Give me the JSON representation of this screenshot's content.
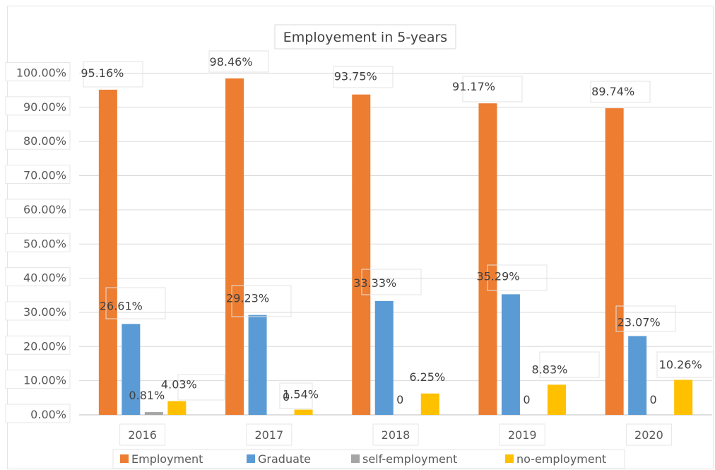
{
  "chart_data": {
    "type": "bar",
    "title": "Employement in 5-years",
    "categories": [
      "2016",
      "2017",
      "2018",
      "2019",
      "2020"
    ],
    "series": [
      {
        "name": "Employment",
        "color": "#ED7D31",
        "values": [
          95.16,
          98.46,
          93.75,
          91.17,
          89.74
        ],
        "labels": [
          "95.16%",
          "98.46%",
          "93.75%",
          "91.17%",
          "89.74%"
        ]
      },
      {
        "name": "Graduate",
        "color": "#5B9BD5",
        "values": [
          26.61,
          29.23,
          33.33,
          35.29,
          23.07
        ],
        "labels": [
          "26.61%",
          "29.23%",
          "33.33%",
          "35.29%",
          "23.07%"
        ]
      },
      {
        "name": "self-employment",
        "color": "#A5A5A5",
        "values": [
          0.81,
          0,
          0,
          0,
          0
        ],
        "labels": [
          "0.81%",
          "0",
          "0",
          "0",
          "0"
        ]
      },
      {
        "name": "no-employment",
        "color": "#FFC000",
        "values": [
          4.03,
          1.54,
          6.25,
          8.83,
          10.26
        ],
        "labels": [
          "4.03%",
          "1.54%",
          "6.25%",
          "8.83%",
          "10.26%"
        ]
      }
    ],
    "ylim": [
      0,
      100
    ],
    "yticks": [
      "0.00%",
      "10.00%",
      "20.00%",
      "30.00%",
      "40.00%",
      "50.00%",
      "60.00%",
      "70.00%",
      "80.00%",
      "90.00%",
      "100.00%"
    ],
    "xlabel": "",
    "ylabel": "",
    "grid": true,
    "legend": "bottom"
  }
}
